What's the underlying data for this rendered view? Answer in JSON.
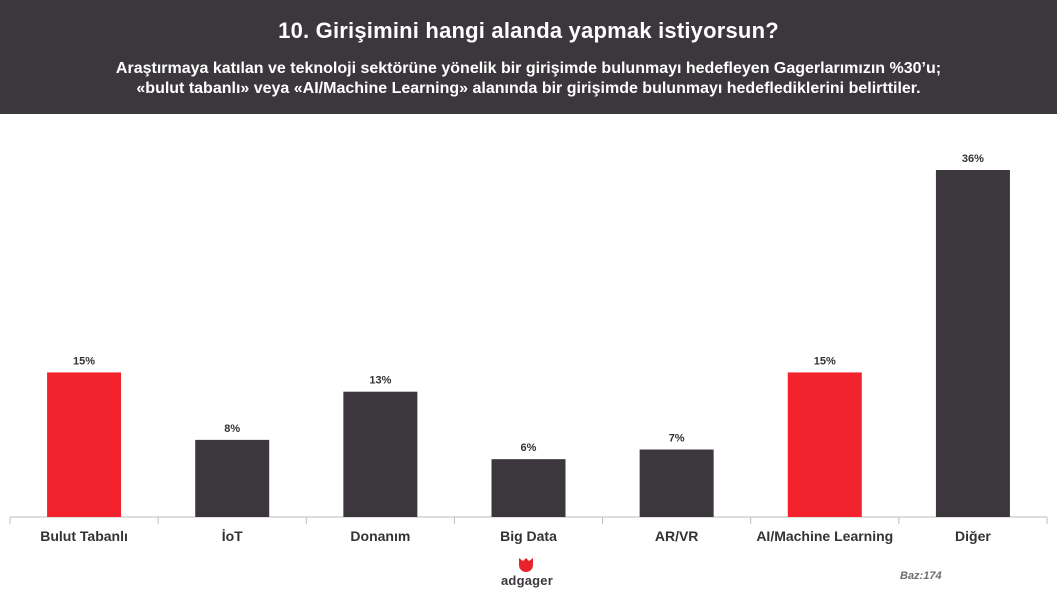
{
  "header": {
    "title": "10. Girişimini hangi alanda yapmak istiyorsun?",
    "subtitle_line1": "Araştırmaya katılan ve teknoloji sektörüne yönelik bir girişimde bulunmayı hedefleyen Gagerlarımızın %30’u;",
    "subtitle_line2": "«bulut tabanlı» veya «AI/Machine Learning» alanında bir girişimde bulunmayı hedeflediklerini belirttiler."
  },
  "chart_data": {
    "type": "bar",
    "categories": [
      "Bulut Tabanlı",
      "İoT",
      "Donanım",
      "Big Data",
      "AR/VR",
      "AI/Machine Learning",
      "Diğer"
    ],
    "values": [
      15,
      8,
      13,
      6,
      7,
      15,
      36
    ],
    "value_labels": [
      "15%",
      "8%",
      "13%",
      "6%",
      "7%",
      "15%",
      "36%"
    ],
    "highlighted": [
      true,
      false,
      false,
      false,
      false,
      true,
      false
    ],
    "unit": "%",
    "ylim": [
      0,
      36
    ],
    "grid": false,
    "legend": "none",
    "colors": {
      "highlight": "#f2232d",
      "default": "#3b373c",
      "axis": "#bdbdbd",
      "label": "#333333"
    }
  },
  "footer": {
    "logo_text": "adgager",
    "logo_color": "#e8232b",
    "base_note": "Baz:174"
  }
}
